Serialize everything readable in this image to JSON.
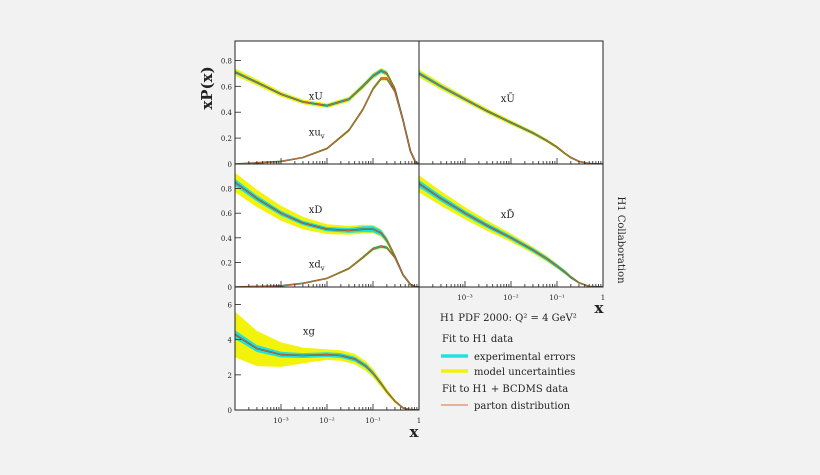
{
  "figure": {
    "ylabel": "xP(x)",
    "xlabel": "x",
    "collaboration": "H1 Collaboration"
  },
  "legend": {
    "title": "H1 PDF 2000:  Q² = 4 GeV²",
    "group1": "Fit to H1 data",
    "exp_label": "experimental errors",
    "model_label": "model uncertainties",
    "group2": "Fit to H1 + BCDMS data",
    "parton_label": "parton distribution"
  },
  "colors": {
    "experimental": "#22e0e0",
    "model": "#f2f20a",
    "fit_line": "#2a5a2a",
    "parton": "#e06a40",
    "panel": "#ffffff",
    "background": "#f2f2f2"
  },
  "chart_data": [
    {
      "panel": "U",
      "type": "line",
      "x_scale": "log",
      "xlim": [
        0.0001,
        1
      ],
      "ylim": [
        0,
        0.95
      ],
      "yticks": [
        0,
        0.2,
        0.4,
        0.6,
        0.8
      ],
      "ytick_labels": [
        "0",
        "0.2",
        "0.4",
        "0.6",
        "0.8"
      ],
      "series": [
        {
          "name": "xU",
          "x": [
            0.0001,
            0.0003,
            0.001,
            0.003,
            0.01,
            0.03,
            0.06,
            0.1,
            0.15,
            0.2,
            0.3,
            0.45,
            0.65,
            0.85,
            1.0
          ],
          "y": [
            0.71,
            0.63,
            0.54,
            0.48,
            0.45,
            0.5,
            0.6,
            0.68,
            0.72,
            0.7,
            0.58,
            0.34,
            0.1,
            0.01,
            0
          ],
          "exp_band": [
            0.012,
            0.01,
            0.009,
            0.009,
            0.01,
            0.012,
            0.015,
            0.016,
            0.016,
            0.015,
            0.013,
            0.01,
            0.006,
            0.002,
            0
          ],
          "model_band": [
            0.028,
            0.024,
            0.02,
            0.018,
            0.018,
            0.02,
            0.022,
            0.022,
            0.022,
            0.02,
            0.018,
            0.014,
            0.008,
            0.003,
            0
          ],
          "label": "xU",
          "label_pos": [
            0.004,
            0.5
          ]
        },
        {
          "name": "xu_v",
          "x": [
            0.0001,
            0.001,
            0.003,
            0.01,
            0.03,
            0.06,
            0.1,
            0.15,
            0.2,
            0.3,
            0.45,
            0.65,
            0.85,
            1.0
          ],
          "y": [
            0,
            0.02,
            0.05,
            0.12,
            0.26,
            0.42,
            0.58,
            0.66,
            0.66,
            0.56,
            0.34,
            0.1,
            0.01,
            0
          ],
          "exp_band": [
            0,
            0.002,
            0.003,
            0.005,
            0.008,
            0.01,
            0.012,
            0.012,
            0.012,
            0.011,
            0.009,
            0.005,
            0.002,
            0
          ],
          "model_band": [
            0,
            0.003,
            0.005,
            0.008,
            0.012,
            0.014,
            0.016,
            0.016,
            0.016,
            0.014,
            0.011,
            0.006,
            0.002,
            0
          ],
          "label": "xu",
          "label_sub": "v",
          "label_pos": [
            0.004,
            0.22
          ]
        }
      ]
    },
    {
      "panel": "Ubar",
      "type": "line",
      "x_scale": "log",
      "xlim": [
        0.0001,
        1
      ],
      "ylim": [
        0,
        0.95
      ],
      "series": [
        {
          "name": "xŪ",
          "x": [
            0.0001,
            0.0003,
            0.001,
            0.003,
            0.01,
            0.03,
            0.06,
            0.1,
            0.15,
            0.2,
            0.3,
            0.5,
            1.0
          ],
          "y": [
            0.7,
            0.6,
            0.5,
            0.41,
            0.32,
            0.24,
            0.18,
            0.13,
            0.08,
            0.05,
            0.02,
            0.003,
            0
          ],
          "exp_band": [
            0.015,
            0.013,
            0.011,
            0.01,
            0.01,
            0.01,
            0.009,
            0.008,
            0.007,
            0.006,
            0.004,
            0.001,
            0
          ],
          "model_band": [
            0.03,
            0.026,
            0.022,
            0.02,
            0.018,
            0.016,
            0.014,
            0.012,
            0.01,
            0.008,
            0.005,
            0.002,
            0
          ],
          "label": "xŪ",
          "label_pos": [
            0.006,
            0.48
          ]
        }
      ]
    },
    {
      "panel": "D",
      "type": "line",
      "x_scale": "log",
      "xlim": [
        0.0001,
        1
      ],
      "ylim": [
        0,
        1.0
      ],
      "yticks": [
        0,
        0.2,
        0.4,
        0.6,
        0.8
      ],
      "ytick_labels": [
        "0",
        "0.2",
        "0.4",
        "0.6",
        "0.8"
      ],
      "series": [
        {
          "name": "xD",
          "x": [
            0.0001,
            0.0003,
            0.001,
            0.003,
            0.01,
            0.03,
            0.06,
            0.1,
            0.15,
            0.2,
            0.3,
            0.45,
            0.65,
            0.85,
            1.0
          ],
          "y": [
            0.85,
            0.72,
            0.6,
            0.52,
            0.47,
            0.46,
            0.47,
            0.47,
            0.44,
            0.38,
            0.25,
            0.1,
            0.02,
            0.002,
            0
          ],
          "exp_band": [
            0.03,
            0.025,
            0.02,
            0.018,
            0.018,
            0.02,
            0.024,
            0.026,
            0.024,
            0.02,
            0.015,
            0.008,
            0.003,
            0.001,
            0
          ],
          "model_band": [
            0.08,
            0.07,
            0.06,
            0.05,
            0.04,
            0.036,
            0.036,
            0.034,
            0.03,
            0.026,
            0.02,
            0.01,
            0.004,
            0.001,
            0
          ],
          "label": "xD",
          "label_pos": [
            0.004,
            0.6
          ]
        },
        {
          "name": "xd_v",
          "x": [
            0.0001,
            0.001,
            0.003,
            0.01,
            0.03,
            0.06,
            0.1,
            0.15,
            0.2,
            0.3,
            0.45,
            0.65,
            0.85,
            1.0
          ],
          "y": [
            0,
            0.01,
            0.03,
            0.07,
            0.15,
            0.24,
            0.31,
            0.33,
            0.32,
            0.24,
            0.1,
            0.02,
            0.002,
            0
          ],
          "exp_band": [
            0,
            0.002,
            0.003,
            0.005,
            0.008,
            0.01,
            0.012,
            0.012,
            0.011,
            0.009,
            0.005,
            0.002,
            0.001,
            0
          ],
          "model_band": [
            0,
            0.003,
            0.004,
            0.007,
            0.01,
            0.013,
            0.015,
            0.015,
            0.014,
            0.011,
            0.006,
            0.003,
            0.001,
            0
          ],
          "label": "xd",
          "label_sub": "v",
          "label_pos": [
            0.004,
            0.16
          ]
        }
      ]
    },
    {
      "panel": "Dbar",
      "type": "line",
      "x_scale": "log",
      "xlim": [
        0.0001,
        1
      ],
      "ylim": [
        0,
        1.0
      ],
      "xticks": [
        0.001,
        0.01,
        0.1,
        1
      ],
      "xtick_labels": [
        "10⁻³",
        "10⁻²",
        "10⁻¹",
        "1"
      ],
      "series": [
        {
          "name": "xD̄",
          "x": [
            0.0001,
            0.0003,
            0.001,
            0.003,
            0.01,
            0.03,
            0.06,
            0.1,
            0.15,
            0.2,
            0.3,
            0.5,
            1.0
          ],
          "y": [
            0.84,
            0.72,
            0.6,
            0.5,
            0.4,
            0.3,
            0.23,
            0.17,
            0.12,
            0.08,
            0.035,
            0.005,
            0
          ],
          "exp_band": [
            0.03,
            0.026,
            0.022,
            0.02,
            0.018,
            0.017,
            0.016,
            0.016,
            0.015,
            0.013,
            0.008,
            0.002,
            0
          ],
          "model_band": [
            0.07,
            0.06,
            0.05,
            0.042,
            0.034,
            0.028,
            0.024,
            0.02,
            0.018,
            0.014,
            0.009,
            0.003,
            0
          ],
          "label": "xD̄",
          "label_pos": [
            0.006,
            0.56
          ]
        }
      ]
    },
    {
      "panel": "g",
      "type": "line",
      "x_scale": "log",
      "xlim": [
        0.0001,
        1
      ],
      "ylim": [
        0,
        7
      ],
      "yticks": [
        0,
        2,
        4,
        6
      ],
      "ytick_labels": [
        "0",
        "2",
        "4",
        "6"
      ],
      "xticks": [
        0.001,
        0.01,
        0.1,
        1
      ],
      "xtick_labels": [
        "10⁻³",
        "10⁻²",
        "10⁻¹",
        "1"
      ],
      "series": [
        {
          "name": "xg",
          "x": [
            0.0001,
            0.0003,
            0.001,
            0.003,
            0.01,
            0.02,
            0.04,
            0.07,
            0.1,
            0.15,
            0.2,
            0.3,
            0.45,
            0.65,
            1.0
          ],
          "y": [
            4.3,
            3.5,
            3.15,
            3.1,
            3.15,
            3.1,
            2.9,
            2.5,
            2.1,
            1.5,
            1.05,
            0.5,
            0.12,
            0.02,
            0
          ],
          "exp_band": [
            0.25,
            0.2,
            0.16,
            0.14,
            0.14,
            0.14,
            0.14,
            0.13,
            0.12,
            0.1,
            0.08,
            0.05,
            0.02,
            0.01,
            0
          ],
          "model_band": [
            1.3,
            1.0,
            0.7,
            0.45,
            0.3,
            0.3,
            0.3,
            0.28,
            0.25,
            0.2,
            0.16,
            0.1,
            0.05,
            0.02,
            0
          ],
          "label": "xg",
          "label_pos": [
            0.003,
            4.3
          ]
        }
      ]
    }
  ]
}
